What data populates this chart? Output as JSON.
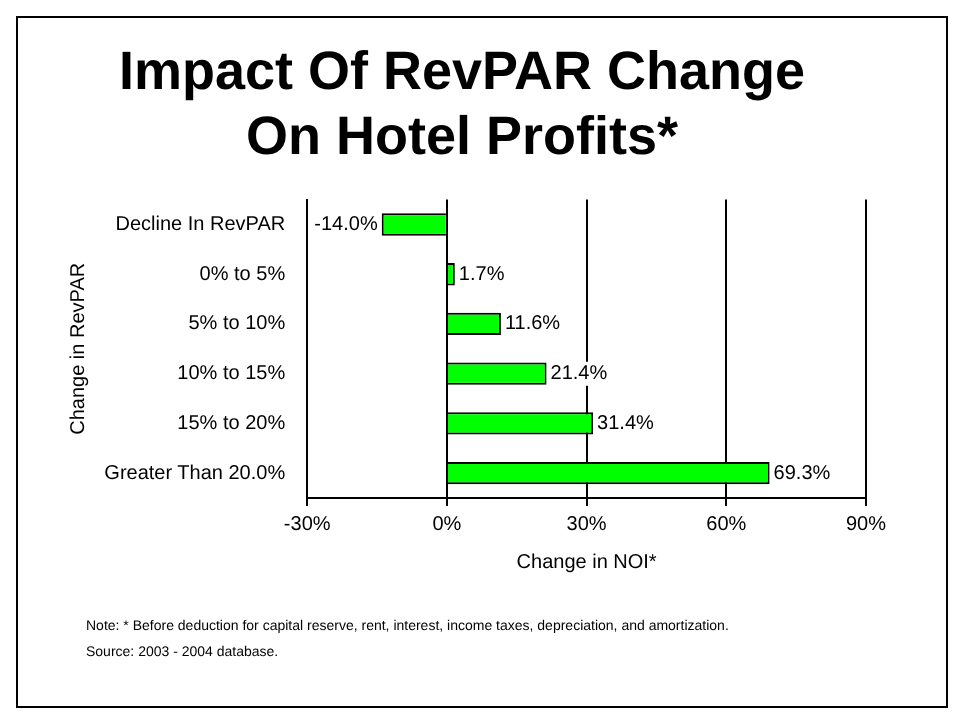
{
  "chart_data": {
    "type": "bar",
    "orientation": "horizontal",
    "title": "Impact Of RevPAR Change\nOn Hotel Profits*",
    "xlabel": "Change in NOI*",
    "ylabel": "Change in RevPAR",
    "categories": [
      "Decline In RevPAR",
      "0% to 5%",
      "5% to 10%",
      "10% to 15%",
      "15% to 20%",
      "Greater Than 20.0%"
    ],
    "values": [
      -14,
      1.7,
      11.6,
      21.4,
      31.4,
      69.3
    ],
    "value_labels": [
      "-14.0%",
      "1.7%",
      "11.6%",
      "21.4%",
      "31.4%",
      "69.3%"
    ],
    "color": "#00ff00",
    "xlim": [
      -30,
      90
    ],
    "xticks": [
      {
        "value": -30,
        "label": "-30%"
      },
      {
        "value": 0,
        "label": "0%"
      },
      {
        "value": 30,
        "label": "30%"
      },
      {
        "value": 60,
        "label": "60%"
      },
      {
        "value": 90,
        "label": "90%"
      }
    ],
    "grid": "x",
    "annotations": [
      "Note: * Before deduction for capital reserve, rent, interest, income taxes, depreciation, and amortization.",
      "Source: 2003 - 2004 database."
    ]
  }
}
